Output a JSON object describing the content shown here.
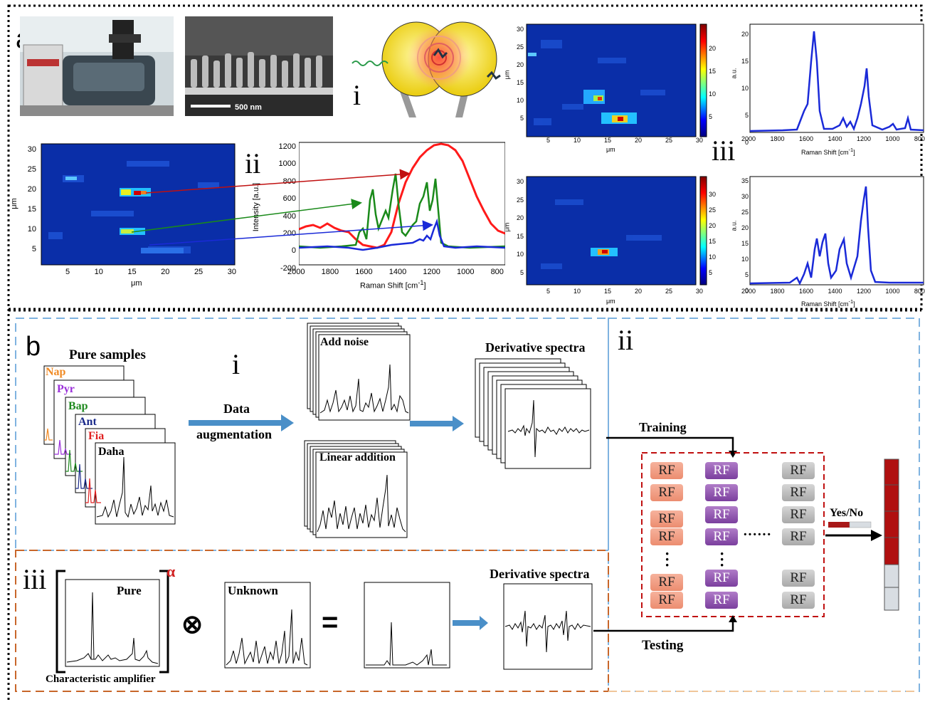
{
  "panel_a": {
    "letter": "a",
    "sem_scale": "500 nm",
    "roman_i": "i",
    "roman_ii": "ii",
    "roman_iii": "iii",
    "map_xlabel": "μm",
    "map_ylabel": "μm",
    "map_xticks": [
      "5",
      "10",
      "15",
      "20",
      "25",
      "30"
    ],
    "map_yticks": [
      "5",
      "10",
      "15",
      "20",
      "25",
      "30"
    ],
    "map1_cbar_ticks": [
      "5",
      "10",
      "15",
      "20"
    ],
    "map2_cbar_ticks": [
      "5",
      "10",
      "15",
      "20",
      "25",
      "30"
    ],
    "spectrum_ii": {
      "xlabel": "Raman Shift [cm",
      "xlabel_sup": "-1",
      "xlabel_end": "]",
      "ylabel": "Intensity [a.u.]",
      "xticks": [
        "2000",
        "1800",
        "1600",
        "1400",
        "1200",
        "1000",
        "800"
      ],
      "yticks": [
        "-200",
        "0",
        "200",
        "400",
        "600",
        "800",
        "1000",
        "1200"
      ]
    },
    "spectrum_iii": {
      "xlabel": "Raman Shift [cm",
      "xlabel_sup": "-1",
      "xlabel_end": "]",
      "ylabel": "a.u.",
      "xticks": [
        "2000",
        "1800",
        "1600",
        "1400",
        "1200",
        "1000",
        "800"
      ],
      "top_yticks": [
        "0",
        "5",
        "10",
        "15",
        "20"
      ],
      "bottom_yticks": [
        "0",
        "5",
        "10",
        "15",
        "20",
        "25",
        "30",
        "35"
      ]
    }
  },
  "panel_b": {
    "letter": "b",
    "roman_i": "i",
    "roman_ii": "ii",
    "roman_iii": "iii",
    "pure_samples": "Pure samples",
    "samples": [
      {
        "name": "Nap",
        "color": "#f08a24"
      },
      {
        "name": "Pyr",
        "color": "#9b30d9"
      },
      {
        "name": "Bap",
        "color": "#1f8a1f"
      },
      {
        "name": "Ant",
        "color": "#1a2a8a"
      },
      {
        "name": "Fia",
        "color": "#e02020"
      },
      {
        "name": "Daha",
        "color": "#000000"
      }
    ],
    "data": "Data",
    "augmentation": "augmentation",
    "add_noise": "Add noise",
    "linear_addition": "Linear addition",
    "derivative_spectra": "Derivative spectra",
    "training": "Training",
    "testing": "Testing",
    "rf": "RF",
    "ellipsis": "······",
    "yes_no": "Yes/No",
    "pure": "Pure",
    "alpha": "α",
    "unknown": "Unknown",
    "characteristic_amplifier": "Characteristic amplifier",
    "otimes": "⊗",
    "equals": "="
  }
}
